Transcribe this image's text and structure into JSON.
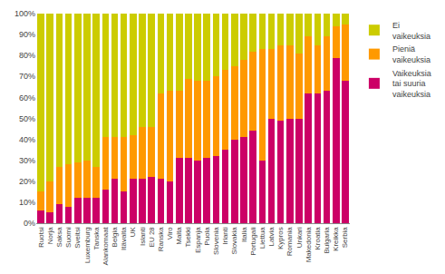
{
  "chart_data": {
    "type": "bar",
    "stacked": true,
    "categories": [
      "Ruotsi",
      "Norja",
      "Saksa",
      "Suomi",
      "Sveitsi",
      "Luxemburg",
      "Tanska",
      "Alankomaat",
      "Belgia",
      "Itävalta",
      "UK",
      "Islanti",
      "EU 28",
      "Ranska",
      "Viro",
      "Malta",
      "Tsekki",
      "Espanja",
      "Puola",
      "Slovenia",
      "Irlanti",
      "Slovakia",
      "Italia",
      "Portugali",
      "Liettua",
      "Latvia",
      "Kypros",
      "Romania",
      "Unkari",
      "Makedonia",
      "Kroatia",
      "Bulgaria",
      "Kreikka",
      "Serbia"
    ],
    "series": [
      {
        "name": "Vaikeuksia\ntai suuria\nvaikeuksia",
        "color": "#CC0066",
        "values": [
          6,
          5,
          9,
          8,
          12,
          12,
          12,
          16,
          21,
          15,
          21,
          21,
          22,
          21,
          20,
          31,
          31,
          30,
          31,
          32,
          35,
          40,
          41,
          44,
          30,
          50,
          49,
          50,
          50,
          62,
          62,
          63,
          79,
          68
        ]
      },
      {
        "name": "Pieniä\nvaikeuksia",
        "color": "#FF9900",
        "values": [
          9,
          15,
          18,
          20,
          17,
          18,
          15,
          25,
          20,
          26,
          21,
          25,
          24,
          41,
          43,
          32,
          38,
          38,
          37,
          38,
          38,
          35,
          37,
          38,
          53,
          33,
          36,
          35,
          31,
          27,
          23,
          26,
          15,
          27
        ]
      },
      {
        "name": "Ei\nvaikeuksia",
        "color": "#CCCC00",
        "values": [
          85,
          80,
          73,
          72,
          71,
          70,
          73,
          59,
          59,
          59,
          58,
          54,
          54,
          38,
          37,
          37,
          31,
          32,
          32,
          30,
          27,
          25,
          22,
          18,
          17,
          17,
          15,
          15,
          19,
          11,
          15,
          11,
          6,
          5
        ]
      }
    ],
    "ylim": [
      0,
      100
    ],
    "yticks": [
      {
        "value": 0,
        "label": "0%"
      },
      {
        "value": 10,
        "label": "10%"
      },
      {
        "value": 20,
        "label": "20%"
      },
      {
        "value": 30,
        "label": "30%"
      },
      {
        "value": 40,
        "label": "40%"
      },
      {
        "value": 50,
        "label": "50%"
      },
      {
        "value": 60,
        "label": "60%"
      },
      {
        "value": 70,
        "label": "70%"
      },
      {
        "value": 80,
        "label": "80%"
      },
      {
        "value": 90,
        "label": "90%"
      },
      {
        "value": 100,
        "label": "100%"
      }
    ],
    "grid": false,
    "legend": "upper right"
  }
}
